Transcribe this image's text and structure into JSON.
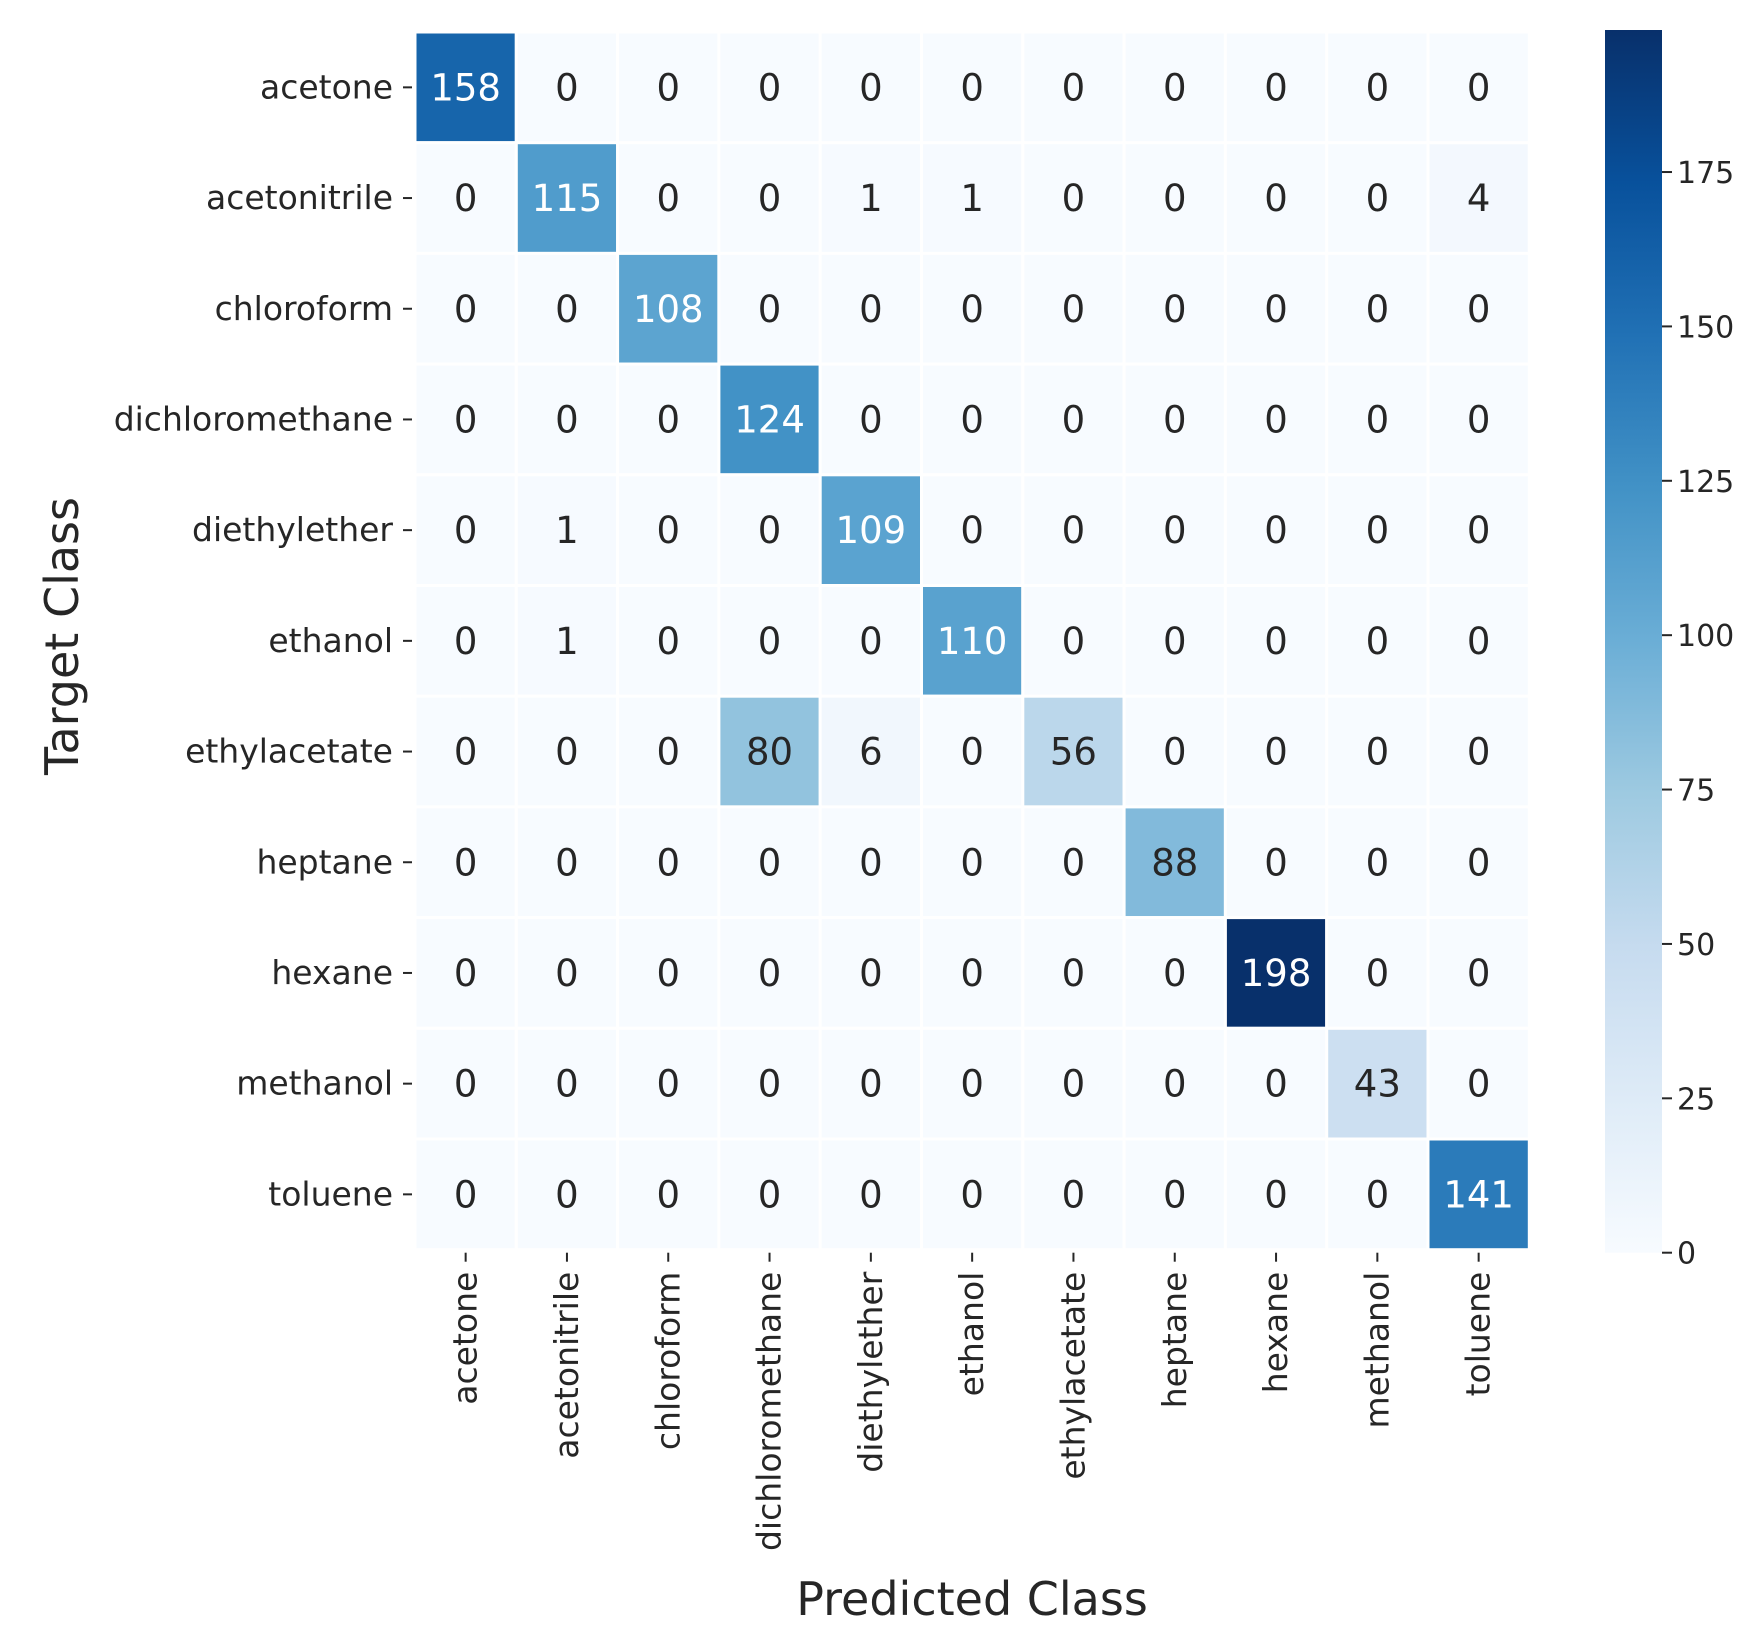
{
  "chart_data": {
    "type": "heatmap",
    "title": "",
    "xlabel": "Predicted Class",
    "ylabel": "Target Class",
    "x_categories": [
      "acetone",
      "acetonitrile",
      "chloroform",
      "dichloromethane",
      "diethylether",
      "ethanol",
      "ethylacetate",
      "heptane",
      "hexane",
      "methanol",
      "toluene"
    ],
    "y_categories": [
      "acetone",
      "acetonitrile",
      "chloroform",
      "dichloromethane",
      "diethylether",
      "ethanol",
      "ethylacetate",
      "heptane",
      "hexane",
      "methanol",
      "toluene"
    ],
    "values": [
      [
        158,
        0,
        0,
        0,
        0,
        0,
        0,
        0,
        0,
        0,
        0
      ],
      [
        0,
        115,
        0,
        0,
        1,
        1,
        0,
        0,
        0,
        0,
        4
      ],
      [
        0,
        0,
        108,
        0,
        0,
        0,
        0,
        0,
        0,
        0,
        0
      ],
      [
        0,
        0,
        0,
        124,
        0,
        0,
        0,
        0,
        0,
        0,
        0
      ],
      [
        0,
        1,
        0,
        0,
        109,
        0,
        0,
        0,
        0,
        0,
        0
      ],
      [
        0,
        1,
        0,
        0,
        0,
        110,
        0,
        0,
        0,
        0,
        0
      ],
      [
        0,
        0,
        0,
        80,
        6,
        0,
        56,
        0,
        0,
        0,
        0
      ],
      [
        0,
        0,
        0,
        0,
        0,
        0,
        0,
        88,
        0,
        0,
        0
      ],
      [
        0,
        0,
        0,
        0,
        0,
        0,
        0,
        0,
        198,
        0,
        0
      ],
      [
        0,
        0,
        0,
        0,
        0,
        0,
        0,
        0,
        0,
        43,
        0
      ],
      [
        0,
        0,
        0,
        0,
        0,
        0,
        0,
        0,
        0,
        0,
        141
      ]
    ],
    "colormap": "Blues",
    "vmin": 0,
    "vmax": 198,
    "colorbar_ticks": [
      0,
      25,
      50,
      75,
      100,
      125,
      150,
      175
    ],
    "colorbar_tick_labels": [
      "0",
      "25",
      "50",
      "75",
      "100",
      "125",
      "150",
      "175"
    ],
    "colors": {
      "low": "#f7fbff",
      "high": "#08306b",
      "text_dark": "#262626",
      "text_light": "#ffffff",
      "grid": "#ffffff"
    }
  }
}
